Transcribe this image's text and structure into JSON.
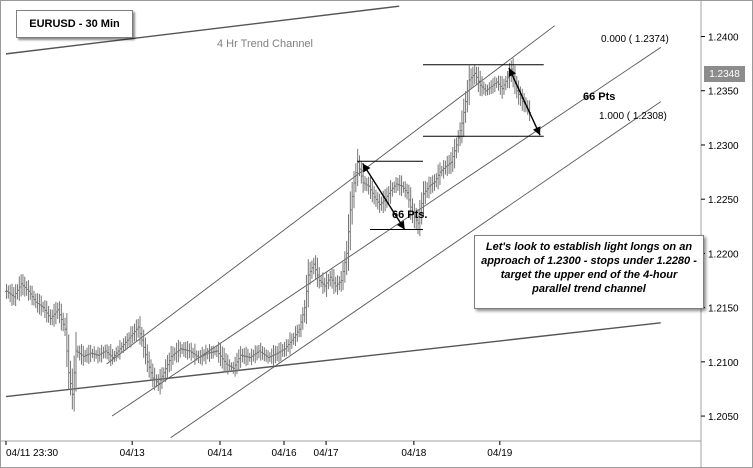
{
  "chart_data": {
    "type": "ohlc-bar",
    "title": "EURUSD - 30 Min",
    "instrument": "EURUSD",
    "timeframe": "30 Min",
    "y_axis": {
      "ticks": [
        1.24,
        1.235,
        1.23,
        1.225,
        1.22,
        1.215,
        1.21,
        1.205
      ],
      "tick_labels": [
        "1.2400",
        "1.2350",
        "1.2300",
        "1.2250",
        "1.2200",
        "1.2150",
        "1.2100",
        "1.2050"
      ],
      "range": [
        1.2027,
        1.243
      ],
      "side": "right"
    },
    "x_axis": {
      "range": [
        0,
        380
      ],
      "tick_labels": [
        {
          "label": "04/11 23:30",
          "bar": 0
        },
        {
          "label": "04/13",
          "bar": 69
        },
        {
          "label": "04/14",
          "bar": 117
        },
        {
          "label": "04/16",
          "bar": 152
        },
        {
          "label": "04/17",
          "bar": 175
        },
        {
          "label": "04/18",
          "bar": 223
        },
        {
          "label": "04/19",
          "bar": 270
        }
      ]
    },
    "last_price": 1.2348,
    "last_price_label": "1.2348",
    "price_path": [
      [
        0,
        1.2165
      ],
      [
        4,
        1.216
      ],
      [
        8,
        1.2172
      ],
      [
        12,
        1.2165
      ],
      [
        16,
        1.2155
      ],
      [
        20,
        1.215
      ],
      [
        24,
        1.214
      ],
      [
        28,
        1.2148
      ],
      [
        32,
        1.213
      ],
      [
        34,
        1.209
      ],
      [
        36,
        1.207
      ],
      [
        38,
        1.211
      ],
      [
        42,
        1.2105
      ],
      [
        46,
        1.2108
      ],
      [
        50,
        1.2106
      ],
      [
        54,
        1.211
      ],
      [
        58,
        1.2104
      ],
      [
        62,
        1.2112
      ],
      [
        66,
        1.212
      ],
      [
        70,
        1.2128
      ],
      [
        72,
        1.2132
      ],
      [
        74,
        1.212
      ],
      [
        77,
        1.21
      ],
      [
        80,
        1.2085
      ],
      [
        83,
        1.208
      ],
      [
        86,
        1.209
      ],
      [
        90,
        1.2105
      ],
      [
        95,
        1.2112
      ],
      [
        100,
        1.211
      ],
      [
        105,
        1.2104
      ],
      [
        110,
        1.2108
      ],
      [
        115,
        1.211
      ],
      [
        120,
        1.2098
      ],
      [
        124,
        1.2094
      ],
      [
        128,
        1.2106
      ],
      [
        133,
        1.2104
      ],
      [
        138,
        1.211
      ],
      [
        143,
        1.2104
      ],
      [
        148,
        1.2108
      ],
      [
        152,
        1.2112
      ],
      [
        156,
        1.212
      ],
      [
        160,
        1.213
      ],
      [
        163,
        1.215
      ],
      [
        165,
        1.218
      ],
      [
        168,
        1.219
      ],
      [
        171,
        1.2175
      ],
      [
        174,
        1.217
      ],
      [
        177,
        1.2178
      ],
      [
        180,
        1.217
      ],
      [
        183,
        1.2175
      ],
      [
        186,
        1.22
      ],
      [
        188,
        1.224
      ],
      [
        190,
        1.2265
      ],
      [
        192,
        1.2284
      ],
      [
        195,
        1.2265
      ],
      [
        198,
        1.2262
      ],
      [
        201,
        1.2252
      ],
      [
        204,
        1.2245
      ],
      [
        207,
        1.225
      ],
      [
        210,
        1.2258
      ],
      [
        213,
        1.2264
      ],
      [
        216,
        1.2262
      ],
      [
        219,
        1.2256
      ],
      [
        222,
        1.2236
      ],
      [
        225,
        1.2228
      ],
      [
        228,
        1.2255
      ],
      [
        231,
        1.2262
      ],
      [
        234,
        1.2266
      ],
      [
        237,
        1.2275
      ],
      [
        240,
        1.228
      ],
      [
        243,
        1.2284
      ],
      [
        246,
        1.23
      ],
      [
        249,
        1.232
      ],
      [
        251,
        1.234
      ],
      [
        253,
        1.236
      ],
      [
        256,
        1.2366
      ],
      [
        259,
        1.2355
      ],
      [
        262,
        1.235
      ],
      [
        265,
        1.2354
      ],
      [
        268,
        1.2358
      ],
      [
        271,
        1.2352
      ],
      [
        274,
        1.2362
      ],
      [
        276,
        1.237
      ],
      [
        279,
        1.235
      ],
      [
        282,
        1.234
      ],
      [
        284,
        1.2336
      ],
      [
        286,
        1.233
      ]
    ],
    "trendlines": [
      {
        "name": "long-term-lower-support",
        "points": [
          [
            0,
            1.2068
          ],
          [
            358,
            1.2136
          ]
        ]
      },
      {
        "name": "channel-upper",
        "points": [
          [
            55,
            1.2098
          ],
          [
            300,
            1.241
          ]
        ]
      },
      {
        "name": "channel-mid",
        "points": [
          [
            58,
            1.205
          ],
          [
            358,
            1.239
          ]
        ]
      },
      {
        "name": "channel-lower",
        "points": [
          [
            90,
            1.203
          ],
          [
            358,
            1.234
          ]
        ]
      },
      {
        "name": "4hr-upper-line",
        "points": [
          [
            0,
            1.2384
          ],
          [
            215,
            1.2428
          ]
        ]
      }
    ],
    "horizontal_levels": [
      {
        "name": "fib-0",
        "y": 1.2374,
        "from": 228,
        "to": 294
      },
      {
        "name": "fib-1",
        "y": 1.2308,
        "from": 228,
        "to": 294
      },
      {
        "name": "prior-high",
        "y": 1.2285,
        "from": 192,
        "to": 228
      },
      {
        "name": "prior-low",
        "y": 1.2222,
        "from": 199,
        "to": 228
      }
    ],
    "arrows": [
      {
        "name": "move-arrow-1",
        "from": [
          195,
          1.2283
        ],
        "to": [
          218,
          1.2222
        ]
      },
      {
        "name": "move-arrow-2",
        "from": [
          275,
          1.2371
        ],
        "to": [
          292,
          1.2309
        ]
      }
    ]
  },
  "labels": {
    "fib_zero": "0.000  ( 1.2374)",
    "fib_one": "1.000  ( 1.2308)",
    "pts_upper": "66 Pts",
    "pts_lower": "66 Pts.",
    "channel_name": "4 Hr Trend Channel",
    "note": "Let's look to establish light longs on an approach of 1.2300 - stops under 1.2280 - target the upper end of the 4-hour parallel trend channel"
  },
  "colors": {
    "price_bars": "#777777",
    "trend_lines": "#555555",
    "axis_text": "#000000",
    "last_price_tag": "#8c8c8c",
    "channel_label": "#808080"
  }
}
